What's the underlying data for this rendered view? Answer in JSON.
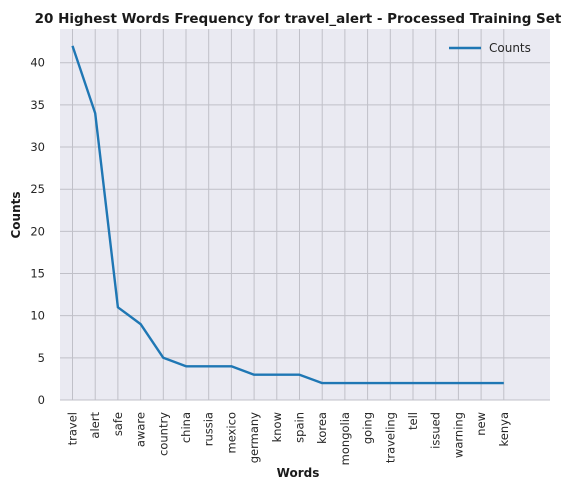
{
  "chart_data": {
    "type": "line",
    "title": "20 Highest Words Frequency for travel_alert - Processed Training Set",
    "xlabel": "Words",
    "ylabel": "Counts",
    "categories": [
      "travel",
      "alert",
      "safe",
      "aware",
      "country",
      "china",
      "russia",
      "mexico",
      "germany",
      "know",
      "spain",
      "korea",
      "mongolia",
      "going",
      "traveling",
      "tell",
      "issued",
      "warning",
      "new",
      "kenya"
    ],
    "series": [
      {
        "name": "Counts",
        "values": [
          42,
          34,
          11,
          9,
          5,
          4,
          4,
          4,
          3,
          3,
          3,
          2,
          2,
          2,
          2,
          2,
          2,
          2,
          2,
          2
        ],
        "color": "#1f77b4"
      }
    ],
    "ylim": [
      0,
      44
    ],
    "yticks": [
      0,
      5,
      10,
      15,
      20,
      25,
      30,
      35,
      40
    ],
    "grid": true,
    "legend_position": "top-right",
    "colors": {
      "plot_background": "#eaeaf2",
      "grid": "#c0c0c8"
    }
  }
}
